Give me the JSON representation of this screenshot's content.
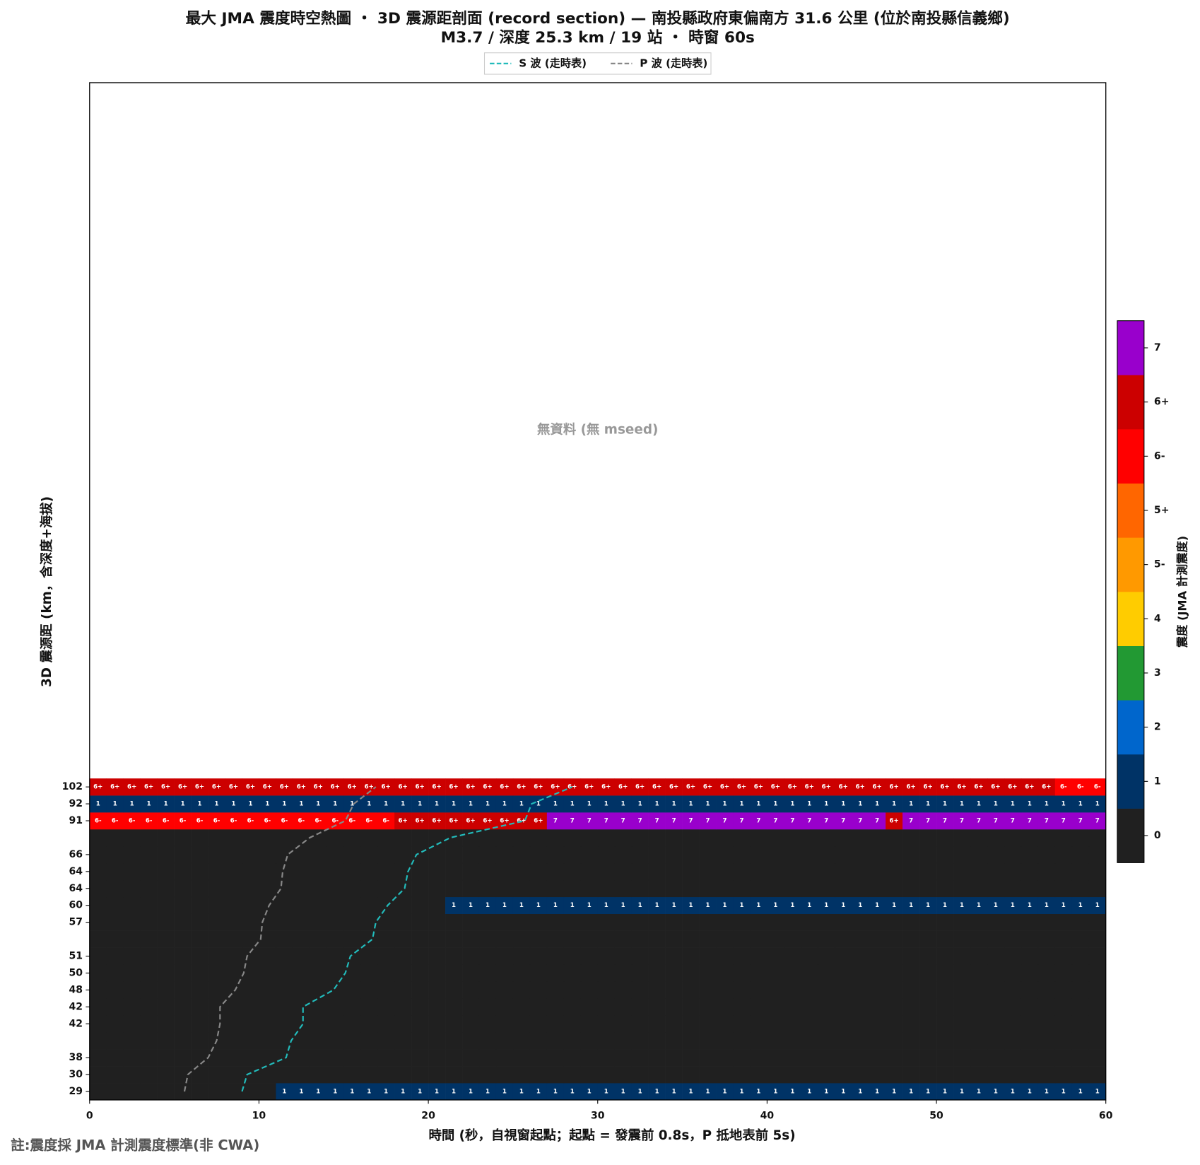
{
  "chart_data": {
    "type": "heatmap",
    "title": "最大 JMA 震度時空熱圖 ・ 3D 震源距剖面 (record section) — 南投縣政府東偏南方  31.6  公里 (位於南投縣信義鄉)",
    "subtitle": "M3.7 / 深度 25.3 km / 19 站 ・ 時窗 60s",
    "annotation": "無資料 (無 mseed)",
    "footnote": "註:震度採 JMA 計測震度標準(非 CWA)",
    "xlabel": "時間 (秒，自視窗起點；起點 = 發震前 0.8s，P 抵地表前 5s)",
    "ylabel": "3D 震源距 (km，含深度+海拔)",
    "xlim": [
      0,
      60
    ],
    "xticks": [
      0,
      10,
      20,
      30,
      40,
      50,
      60
    ],
    "categories": [
      "29",
      "30",
      "38",
      null,
      "42",
      "42",
      "48",
      "50",
      "51",
      null,
      "57",
      "60",
      "64",
      "64",
      "66",
      null,
      "91",
      "92",
      "102"
    ],
    "values": [
      [
        "0",
        "0",
        "0",
        "0",
        "0",
        "0",
        "0",
        "0",
        "0",
        "0",
        "0",
        "1",
        "1",
        "1",
        "1",
        "1",
        "1",
        "1",
        "1",
        "1",
        "1",
        "1",
        "1",
        "1",
        "1",
        "1",
        "1",
        "1",
        "1",
        "1",
        "1",
        "1",
        "1",
        "1",
        "1",
        "1",
        "1",
        "1",
        "1",
        "1",
        "1",
        "1",
        "1",
        "1",
        "1",
        "1",
        "1",
        "1",
        "1",
        "1",
        "1",
        "1",
        "1",
        "1",
        "1",
        "1",
        "1",
        "1",
        "1",
        "1"
      ],
      [
        "0",
        "0",
        "0",
        "0",
        "0",
        "0",
        "0",
        "0",
        "0",
        "0",
        "0",
        "0",
        "0",
        "0",
        "0",
        "0",
        "0",
        "0",
        "0",
        "0",
        "0",
        "0",
        "0",
        "0",
        "0",
        "0",
        "0",
        "0",
        "0",
        "0",
        "0",
        "0",
        "0",
        "0",
        "0",
        "0",
        "0",
        "0",
        "0",
        "0",
        "0",
        "0",
        "0",
        "0",
        "0",
        "0",
        "0",
        "0",
        "0",
        "0",
        "0",
        "0",
        "0",
        "0",
        "0",
        "0",
        "0",
        "0",
        "0",
        "0"
      ],
      [
        "0",
        "0",
        "0",
        "0",
        "0",
        "0",
        "0",
        "0",
        "0",
        "0",
        "0",
        "0",
        "0",
        "0",
        "0",
        "0",
        "0",
        "0",
        "0",
        "0",
        "0",
        "0",
        "0",
        "0",
        "0",
        "0",
        "0",
        "0",
        "0",
        "0",
        "0",
        "0",
        "0",
        "0",
        "0",
        "0",
        "0",
        "0",
        "0",
        "0",
        "0",
        "0",
        "0",
        "0",
        "0",
        "0",
        "0",
        "0",
        "0",
        "0",
        "0",
        "0",
        "0",
        "0",
        "0",
        "0",
        "0",
        "0",
        "0",
        "0"
      ],
      [
        "0",
        "0",
        "0",
        "0",
        "0",
        "0",
        "0",
        "0",
        "0",
        "0",
        "0",
        "0",
        "0",
        "0",
        "0",
        "0",
        "0",
        "0",
        "0",
        "0",
        "0",
        "0",
        "0",
        "0",
        "0",
        "0",
        "0",
        "0",
        "0",
        "0",
        "0",
        "0",
        "0",
        "0",
        "0",
        "0",
        "0",
        "0",
        "0",
        "0",
        "0",
        "0",
        "0",
        "0",
        "0",
        "0",
        "0",
        "0",
        "0",
        "0",
        "0",
        "0",
        "0",
        "0",
        "0",
        "0",
        "0",
        "0",
        "0",
        "0"
      ],
      [
        "0",
        "0",
        "0",
        "0",
        "0",
        "0",
        "0",
        "0",
        "0",
        "0",
        "0",
        "0",
        "0",
        "0",
        "0",
        "0",
        "0",
        "0",
        "0",
        "0",
        "0",
        "0",
        "0",
        "0",
        "0",
        "0",
        "0",
        "0",
        "0",
        "0",
        "0",
        "0",
        "0",
        "0",
        "0",
        "0",
        "0",
        "0",
        "0",
        "0",
        "0",
        "0",
        "0",
        "0",
        "0",
        "0",
        "0",
        "0",
        "0",
        "0",
        "0",
        "0",
        "0",
        "0",
        "0",
        "0",
        "0",
        "0",
        "0",
        "0"
      ],
      [
        "0",
        "0",
        "0",
        "0",
        "0",
        "0",
        "0",
        "0",
        "0",
        "0",
        "0",
        "0",
        "0",
        "0",
        "0",
        "0",
        "0",
        "0",
        "0",
        "0",
        "0",
        "0",
        "0",
        "0",
        "0",
        "0",
        "0",
        "0",
        "0",
        "0",
        "0",
        "0",
        "0",
        "0",
        "0",
        "0",
        "0",
        "0",
        "0",
        "0",
        "0",
        "0",
        "0",
        "0",
        "0",
        "0",
        "0",
        "0",
        "0",
        "0",
        "0",
        "0",
        "0",
        "0",
        "0",
        "0",
        "0",
        "0",
        "0",
        "0"
      ],
      [
        "0",
        "0",
        "0",
        "0",
        "0",
        "0",
        "0",
        "0",
        "0",
        "0",
        "0",
        "0",
        "0",
        "0",
        "0",
        "0",
        "0",
        "0",
        "0",
        "0",
        "0",
        "0",
        "0",
        "0",
        "0",
        "0",
        "0",
        "0",
        "0",
        "0",
        "0",
        "0",
        "0",
        "0",
        "0",
        "0",
        "0",
        "0",
        "0",
        "0",
        "0",
        "0",
        "0",
        "0",
        "0",
        "0",
        "0",
        "0",
        "0",
        "0",
        "0",
        "0",
        "0",
        "0",
        "0",
        "0",
        "0",
        "0",
        "0",
        "0"
      ],
      [
        "0",
        "0",
        "0",
        "0",
        "0",
        "0",
        "0",
        "0",
        "0",
        "0",
        "0",
        "0",
        "0",
        "0",
        "0",
        "0",
        "0",
        "0",
        "0",
        "0",
        "0",
        "0",
        "0",
        "0",
        "0",
        "0",
        "0",
        "0",
        "0",
        "0",
        "0",
        "0",
        "0",
        "0",
        "0",
        "0",
        "0",
        "0",
        "0",
        "0",
        "0",
        "0",
        "0",
        "0",
        "0",
        "0",
        "0",
        "0",
        "0",
        "0",
        "0",
        "0",
        "0",
        "0",
        "0",
        "0",
        "0",
        "0",
        "0",
        "0"
      ],
      [
        "0",
        "0",
        "0",
        "0",
        "0",
        "0",
        "0",
        "0",
        "0",
        "0",
        "0",
        "0",
        "0",
        "0",
        "0",
        "0",
        "0",
        "0",
        "0",
        "0",
        "0",
        "0",
        "0",
        "0",
        "0",
        "0",
        "0",
        "0",
        "0",
        "0",
        "0",
        "0",
        "0",
        "0",
        "0",
        "0",
        "0",
        "0",
        "0",
        "0",
        "0",
        "0",
        "0",
        "0",
        "0",
        "0",
        "0",
        "0",
        "0",
        "0",
        "0",
        "0",
        "0",
        "0",
        "0",
        "0",
        "0",
        "0",
        "0",
        "0"
      ],
      [
        "0",
        "0",
        "0",
        "0",
        "0",
        "0",
        "0",
        "0",
        "0",
        "0",
        "0",
        "0",
        "0",
        "0",
        "0",
        "0",
        "0",
        "0",
        "0",
        "0",
        "0",
        "0",
        "0",
        "0",
        "0",
        "0",
        "0",
        "0",
        "0",
        "0",
        "0",
        "0",
        "0",
        "0",
        "0",
        "0",
        "0",
        "0",
        "0",
        "0",
        "0",
        "0",
        "0",
        "0",
        "0",
        "0",
        "0",
        "0",
        "0",
        "0",
        "0",
        "0",
        "0",
        "0",
        "0",
        "0",
        "0",
        "0",
        "0",
        "0"
      ],
      [
        "0",
        "0",
        "0",
        "0",
        "0",
        "0",
        "0",
        "0",
        "0",
        "0",
        "0",
        "0",
        "0",
        "0",
        "0",
        "0",
        "0",
        "0",
        "0",
        "0",
        "0",
        "0",
        "0",
        "0",
        "0",
        "0",
        "0",
        "0",
        "0",
        "0",
        "0",
        "0",
        "0",
        "0",
        "0",
        "0",
        "0",
        "0",
        "0",
        "0",
        "0",
        "0",
        "0",
        "0",
        "0",
        "0",
        "0",
        "0",
        "0",
        "0",
        "0",
        "0",
        "0",
        "0",
        "0",
        "0",
        "0",
        "0",
        "0",
        "0"
      ],
      [
        "0",
        "0",
        "0",
        "0",
        "0",
        "0",
        "0",
        "0",
        "0",
        "0",
        "0",
        "0",
        "0",
        "0",
        "0",
        "0",
        "0",
        "0",
        "0",
        "0",
        "0",
        "1",
        "1",
        "1",
        "1",
        "1",
        "1",
        "1",
        "1",
        "1",
        "1",
        "1",
        "1",
        "1",
        "1",
        "1",
        "1",
        "1",
        "1",
        "1",
        "1",
        "1",
        "1",
        "1",
        "1",
        "1",
        "1",
        "1",
        "1",
        "1",
        "1",
        "1",
        "1",
        "1",
        "1",
        "1",
        "1",
        "1",
        "1",
        "1"
      ],
      [
        "0",
        "0",
        "0",
        "0",
        "0",
        "0",
        "0",
        "0",
        "0",
        "0",
        "0",
        "0",
        "0",
        "0",
        "0",
        "0",
        "0",
        "0",
        "0",
        "0",
        "0",
        "0",
        "0",
        "0",
        "0",
        "0",
        "0",
        "0",
        "0",
        "0",
        "0",
        "0",
        "0",
        "0",
        "0",
        "0",
        "0",
        "0",
        "0",
        "0",
        "0",
        "0",
        "0",
        "0",
        "0",
        "0",
        "0",
        "0",
        "0",
        "0",
        "0",
        "0",
        "0",
        "0",
        "0",
        "0",
        "0",
        "0",
        "0",
        "0"
      ],
      [
        "0",
        "0",
        "0",
        "0",
        "0",
        "0",
        "0",
        "0",
        "0",
        "0",
        "0",
        "0",
        "0",
        "0",
        "0",
        "0",
        "0",
        "0",
        "0",
        "0",
        "0",
        "0",
        "0",
        "0",
        "0",
        "0",
        "0",
        "0",
        "0",
        "0",
        "0",
        "0",
        "0",
        "0",
        "0",
        "0",
        "0",
        "0",
        "0",
        "0",
        "0",
        "0",
        "0",
        "0",
        "0",
        "0",
        "0",
        "0",
        "0",
        "0",
        "0",
        "0",
        "0",
        "0",
        "0",
        "0",
        "0",
        "0",
        "0",
        "0"
      ],
      [
        "0",
        "0",
        "0",
        "0",
        "0",
        "0",
        "0",
        "0",
        "0",
        "0",
        "0",
        "0",
        "0",
        "0",
        "0",
        "0",
        "0",
        "0",
        "0",
        "0",
        "0",
        "0",
        "0",
        "0",
        "0",
        "0",
        "0",
        "0",
        "0",
        "0",
        "0",
        "0",
        "0",
        "0",
        "0",
        "0",
        "0",
        "0",
        "0",
        "0",
        "0",
        "0",
        "0",
        "0",
        "0",
        "0",
        "0",
        "0",
        "0",
        "0",
        "0",
        "0",
        "0",
        "0",
        "0",
        "0",
        "0",
        "0",
        "0",
        "0"
      ],
      [
        "0",
        "0",
        "0",
        "0",
        "0",
        "0",
        "0",
        "0",
        "0",
        "0",
        "0",
        "0",
        "0",
        "0",
        "0",
        "0",
        "0",
        "0",
        "0",
        "0",
        "0",
        "0",
        "0",
        "0",
        "0",
        "0",
        "0",
        "0",
        "0",
        "0",
        "0",
        "0",
        "0",
        "0",
        "0",
        "0",
        "0",
        "0",
        "0",
        "0",
        "0",
        "0",
        "0",
        "0",
        "0",
        "0",
        "0",
        "0",
        "0",
        "0",
        "0",
        "0",
        "0",
        "0",
        "0",
        "0",
        "0",
        "0",
        "0",
        "0"
      ],
      [
        "6-",
        "6-",
        "6-",
        "6-",
        "6-",
        "6-",
        "6-",
        "6-",
        "6-",
        "6-",
        "6-",
        "6-",
        "6-",
        "6-",
        "6-",
        "6-",
        "6-",
        "6-",
        "6+",
        "6+",
        "6+",
        "6+",
        "6+",
        "6+",
        "6+",
        "6+",
        "6+",
        "7",
        "7",
        "7",
        "7",
        "7",
        "7",
        "7",
        "7",
        "7",
        "7",
        "7",
        "7",
        "7",
        "7",
        "7",
        "7",
        "7",
        "7",
        "7",
        "7",
        "6+",
        "7",
        "7",
        "7",
        "7",
        "7",
        "7",
        "7",
        "7",
        "7",
        "7",
        "7",
        "7"
      ],
      [
        "1",
        "1",
        "1",
        "1",
        "1",
        "1",
        "1",
        "1",
        "1",
        "1",
        "1",
        "1",
        "1",
        "1",
        "1",
        "1",
        "1",
        "1",
        "1",
        "1",
        "1",
        "1",
        "1",
        "1",
        "1",
        "1",
        "1",
        "1",
        "1",
        "1",
        "1",
        "1",
        "1",
        "1",
        "1",
        "1",
        "1",
        "1",
        "1",
        "1",
        "1",
        "1",
        "1",
        "1",
        "1",
        "1",
        "1",
        "1",
        "1",
        "1",
        "1",
        "1",
        "1",
        "1",
        "1",
        "1",
        "1",
        "1",
        "1",
        "1"
      ],
      [
        "6+",
        "6+",
        "6+",
        "6+",
        "6+",
        "6+",
        "6+",
        "6+",
        "6+",
        "6+",
        "6+",
        "6+",
        "6+",
        "6+",
        "6+",
        "6+",
        "6+",
        "6+",
        "6+",
        "6+",
        "6+",
        "6+",
        "6+",
        "6+",
        "6+",
        "6+",
        "6+",
        "6+",
        "6+",
        "6+",
        "6+",
        "6+",
        "6+",
        "6+",
        "6+",
        "6+",
        "6+",
        "6+",
        "6+",
        "6+",
        "6+",
        "6+",
        "6+",
        "6+",
        "6+",
        "6+",
        "6+",
        "6+",
        "6+",
        "6+",
        "6+",
        "6+",
        "6+",
        "6+",
        "6+",
        "6+",
        "6+",
        "6-",
        "6-",
        "6-"
      ]
    ],
    "series": [
      {
        "name": "S 波 (走時表)",
        "color": "#22bbbb",
        "values": [
          9.0,
          9.3,
          11.6,
          11.9,
          12.6,
          12.6,
          14.4,
          15.1,
          15.4,
          16.7,
          16.9,
          17.6,
          18.6,
          18.8,
          19.3,
          21.3,
          25.7,
          26.1,
          28.5
        ]
      },
      {
        "name": "P 波 (走時表)",
        "color": "#888888",
        "values": [
          5.6,
          5.8,
          7.0,
          7.5,
          7.7,
          7.7,
          8.6,
          9.1,
          9.3,
          10.1,
          10.2,
          10.6,
          11.3,
          11.4,
          11.7,
          13.0,
          15.1,
          15.6,
          16.9
        ]
      }
    ],
    "colorbar": {
      "label": "震度 (JMA 計測震度)",
      "levels": [
        "0",
        "1",
        "2",
        "3",
        "4",
        "5-",
        "5+",
        "6-",
        "6+",
        "7"
      ],
      "colors": [
        "#202020",
        "#003366",
        "#0066cc",
        "#229933",
        "#ffcc00",
        "#ff9900",
        "#ff6600",
        "#ff0000",
        "#cc0000",
        "#9900cc"
      ]
    }
  }
}
